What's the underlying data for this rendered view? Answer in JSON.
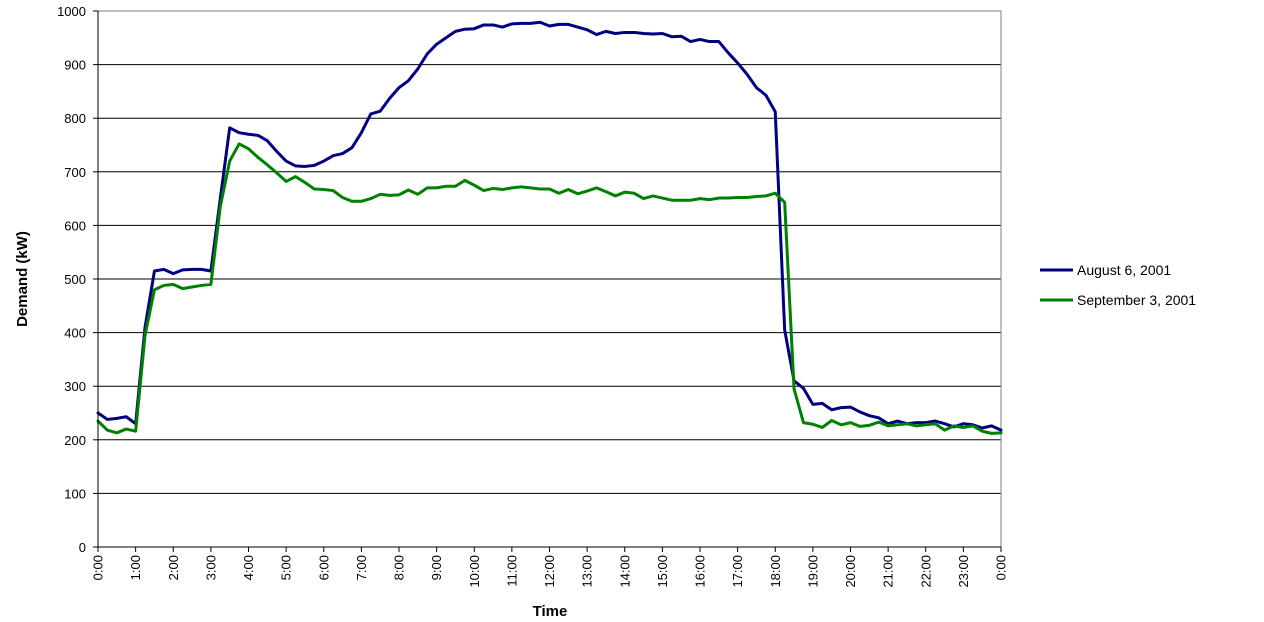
{
  "chart_data": {
    "type": "line",
    "xlabel": "Time",
    "ylabel": "Demand (kW)",
    "ylim": [
      0,
      1000
    ],
    "y_ticks": [
      0,
      100,
      200,
      300,
      400,
      500,
      600,
      700,
      800,
      900,
      1000
    ],
    "x_tick_labels": [
      "0:00",
      "1:00",
      "2:00",
      "3:00",
      "4:00",
      "5:00",
      "6:00",
      "7:00",
      "8:00",
      "9:00",
      "10:00",
      "11:00",
      "12:00",
      "13:00",
      "14:00",
      "15:00",
      "16:00",
      "17:00",
      "18:00",
      "19:00",
      "20:00",
      "21:00",
      "22:00",
      "23:00",
      "0:00"
    ],
    "xlim_hours": [
      0,
      24
    ],
    "grid": "horizontal",
    "legend_position": "right",
    "series": [
      {
        "name": "August 6, 2001",
        "color": "#000080",
        "x_hours": [
          0.0,
          0.25,
          0.5,
          0.75,
          1.0,
          1.25,
          1.5,
          1.75,
          2.0,
          2.25,
          2.5,
          2.75,
          3.0,
          3.25,
          3.5,
          3.75,
          4.0,
          4.25,
          4.5,
          4.75,
          5.0,
          5.25,
          5.5,
          5.75,
          6.0,
          6.25,
          6.5,
          6.75,
          7.0,
          7.25,
          7.5,
          7.75,
          8.0,
          8.25,
          8.5,
          8.75,
          9.0,
          9.25,
          9.5,
          9.75,
          10.0,
          10.25,
          10.5,
          10.75,
          11.0,
          11.25,
          11.5,
          11.75,
          12.0,
          12.25,
          12.5,
          12.75,
          13.0,
          13.25,
          13.5,
          13.75,
          14.0,
          14.25,
          14.5,
          14.75,
          15.0,
          15.25,
          15.5,
          15.75,
          16.0,
          16.25,
          16.5,
          16.75,
          17.0,
          17.25,
          17.5,
          17.75,
          18.0,
          18.25,
          18.5,
          18.75,
          19.0,
          19.25,
          19.5,
          19.75,
          20.0,
          20.25,
          20.5,
          20.75,
          21.0,
          21.25,
          21.5,
          21.75,
          22.0,
          22.25,
          22.5,
          22.75,
          23.0,
          23.25,
          23.5,
          23.75,
          24.0
        ],
        "values": [
          250,
          238,
          240,
          243,
          230,
          410,
          515,
          518,
          510,
          517,
          518,
          518,
          515,
          650,
          782,
          773,
          770,
          768,
          758,
          738,
          720,
          711,
          710,
          712,
          720,
          730,
          734,
          745,
          773,
          808,
          813,
          837,
          857,
          870,
          892,
          920,
          938,
          950,
          962,
          966,
          967,
          974,
          974,
          970,
          976,
          977,
          977,
          979,
          972,
          975,
          975,
          970,
          965,
          956,
          962,
          958,
          960,
          960,
          958,
          957,
          958,
          952,
          953,
          943,
          947,
          943,
          943,
          922,
          903,
          882,
          857,
          843,
          812,
          405,
          310,
          296,
          266,
          268,
          256,
          260,
          261,
          252,
          245,
          241,
          230,
          235,
          230,
          232,
          232,
          235,
          230,
          224,
          230,
          228,
          222,
          226,
          218
        ]
      },
      {
        "name": "September 3, 2001",
        "color": "#008000",
        "x_hours": [
          0.0,
          0.25,
          0.5,
          0.75,
          1.0,
          1.25,
          1.5,
          1.75,
          2.0,
          2.25,
          2.5,
          2.75,
          3.0,
          3.25,
          3.5,
          3.75,
          4.0,
          4.25,
          4.5,
          4.75,
          5.0,
          5.25,
          5.5,
          5.75,
          6.0,
          6.25,
          6.5,
          6.75,
          7.0,
          7.25,
          7.5,
          7.75,
          8.0,
          8.25,
          8.5,
          8.75,
          9.0,
          9.25,
          9.5,
          9.75,
          10.0,
          10.25,
          10.5,
          10.75,
          11.0,
          11.25,
          11.5,
          11.75,
          12.0,
          12.25,
          12.5,
          12.75,
          13.0,
          13.25,
          13.5,
          13.75,
          14.0,
          14.25,
          14.5,
          14.75,
          15.0,
          15.25,
          15.5,
          15.75,
          16.0,
          16.25,
          16.5,
          16.75,
          17.0,
          17.25,
          17.5,
          17.75,
          18.0,
          18.25,
          18.5,
          18.75,
          19.0,
          19.25,
          19.5,
          19.75,
          20.0,
          20.25,
          20.5,
          20.75,
          21.0,
          21.25,
          21.5,
          21.75,
          22.0,
          22.25,
          22.5,
          22.75,
          23.0,
          23.25,
          23.5,
          23.75,
          24.0
        ],
        "values": [
          235,
          218,
          213,
          220,
          216,
          395,
          480,
          488,
          490,
          482,
          485,
          488,
          490,
          635,
          720,
          752,
          743,
          727,
          713,
          698,
          682,
          691,
          680,
          668,
          667,
          665,
          652,
          645,
          645,
          650,
          658,
          656,
          657,
          666,
          658,
          670,
          670,
          673,
          673,
          684,
          675,
          665,
          669,
          667,
          670,
          672,
          670,
          668,
          668,
          660,
          667,
          659,
          664,
          670,
          663,
          655,
          662,
          660,
          650,
          655,
          651,
          647,
          647,
          647,
          650,
          648,
          651,
          651,
          652,
          652,
          654,
          655,
          660,
          643,
          295,
          232,
          229,
          223,
          236,
          228,
          232,
          225,
          227,
          233,
          226,
          228,
          230,
          226,
          228,
          230,
          218,
          226,
          223,
          226,
          216,
          212,
          213
        ]
      }
    ]
  }
}
